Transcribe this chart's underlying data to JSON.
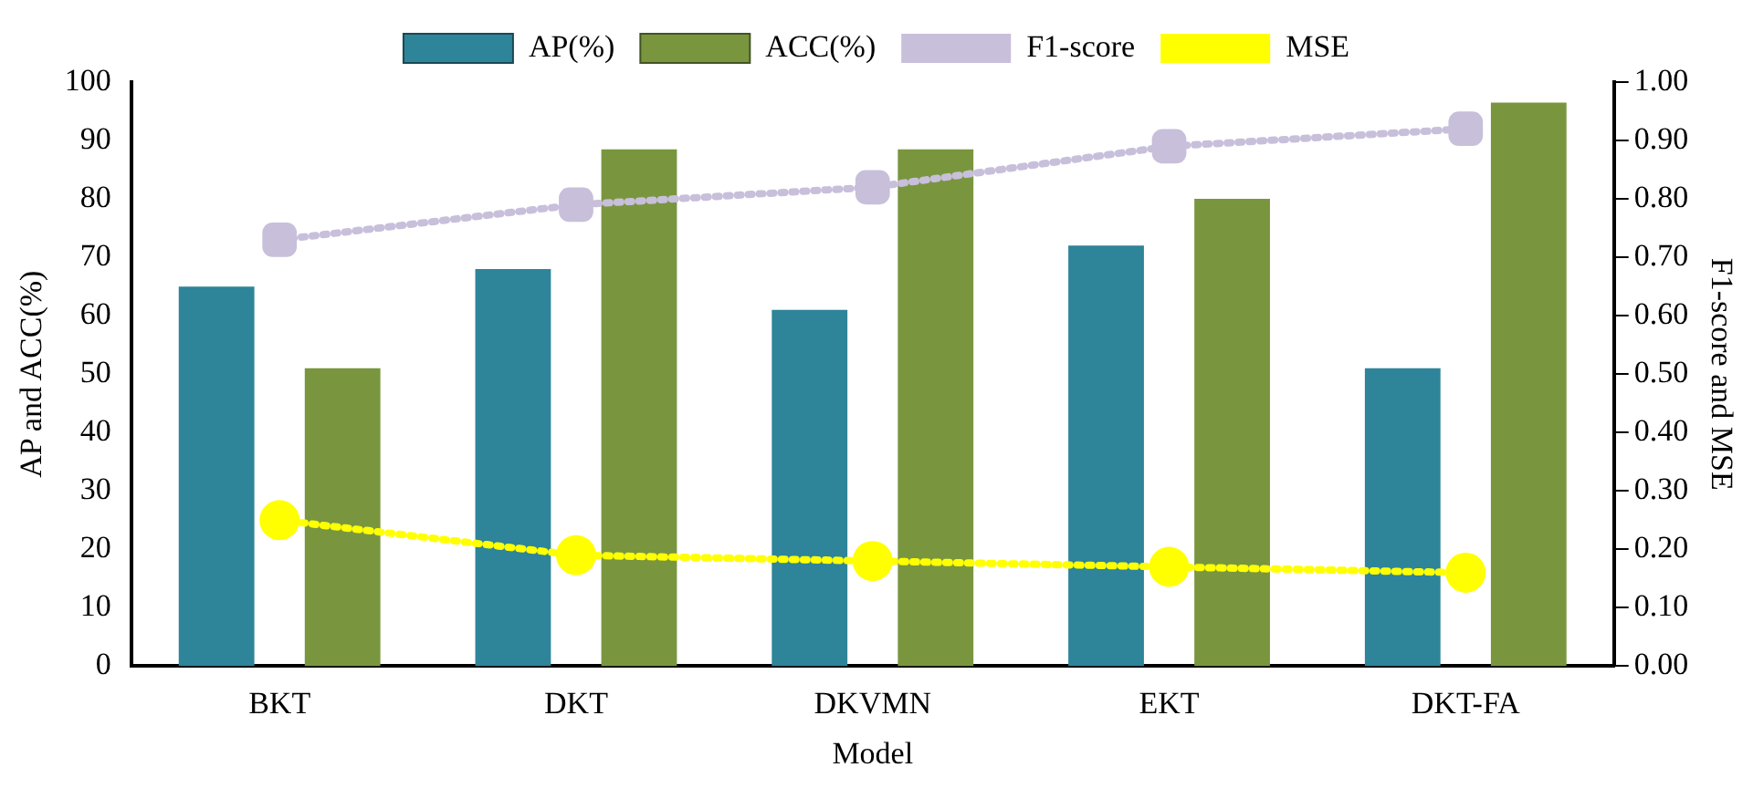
{
  "chart_data": {
    "type": "bar",
    "xlabel": "Model",
    "ylabel": "AP and ACC(%)",
    "y2label": "F1-score and MSE",
    "categories": [
      "BKT",
      "DKT",
      "DKVMN",
      "EKT",
      "DKT-FA"
    ],
    "series": [
      {
        "name": "AP(%)",
        "color": "#2e8499",
        "values": [
          65,
          68,
          61,
          72,
          51
        ]
      },
      {
        "name": "ACC(%)",
        "color": "#79963f",
        "values": [
          51,
          88.5,
          88.5,
          80,
          96.5
        ]
      },
      {
        "name": "F1-score",
        "type": "line",
        "axis": "y2",
        "color": "#c8bfdb",
        "marker": "square",
        "line_style": "dotted",
        "values": [
          0.73,
          0.79,
          0.82,
          0.89,
          0.92
        ]
      },
      {
        "name": "MSE",
        "type": "line",
        "axis": "y2",
        "color": "#ffff00",
        "marker": "circle",
        "line_style": "dotted",
        "values": [
          0.25,
          0.19,
          0.18,
          0.17,
          0.16
        ]
      }
    ],
    "ylim": [
      0,
      100
    ],
    "yticks": [
      0,
      10,
      20,
      30,
      40,
      50,
      60,
      70,
      80,
      90,
      100
    ],
    "y2lim": [
      0,
      1
    ],
    "y2ticks": [
      {
        "value": 0,
        "label": "0.00"
      },
      {
        "value": 0.1,
        "label": "0.10"
      },
      {
        "value": 0.2,
        "label": "0.20"
      },
      {
        "value": 0.3,
        "label": "0.30"
      },
      {
        "value": 0.4,
        "label": "0.40"
      },
      {
        "value": 0.5,
        "label": "0.50"
      },
      {
        "value": 0.6,
        "label": "0.60"
      },
      {
        "value": 0.7,
        "label": "0.70"
      },
      {
        "value": 0.8,
        "label": "0.80"
      },
      {
        "value": 0.9,
        "label": "0.90"
      },
      {
        "value": 1,
        "label": "1.00"
      }
    ],
    "grid": false,
    "legend": "top"
  }
}
